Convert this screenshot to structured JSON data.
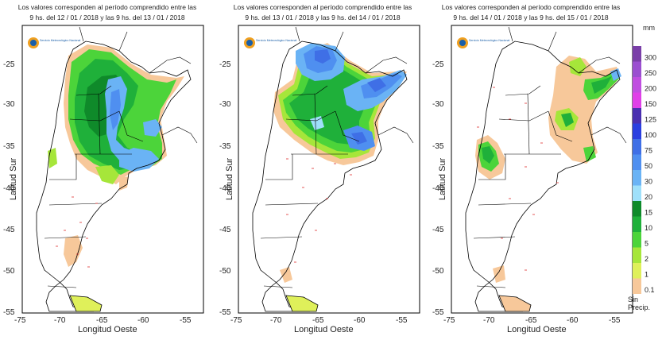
{
  "panels": [
    {
      "title_line1": "Los valores corresponden al período comprendido entre las",
      "title_line2": "9 hs. del 12 / 01 / 2018  y las 9 hs. del 13 / 01 / 2018",
      "ylabel": "Latitud Sur",
      "xlabel": "Longitud Oeste",
      "logo_text": "Servicio Meteorológico Nacional"
    },
    {
      "title_line1": "Los valores corresponden al período comprendido entre las",
      "title_line2": "9 hs. del 13 / 01 / 2018  y las 9 hs. del 14 / 01 / 2018",
      "ylabel": "Latitud Sur",
      "xlabel": "Longitud Oeste",
      "logo_text": "Servicio Meteorológico Nacional"
    },
    {
      "title_line1": "Los valores corresponden al período comprendido entre las",
      "title_line2": "9 hs. del 14 / 01 / 2018  y las 9 hs. del 15 / 01 / 2018",
      "ylabel": "Latitud Sur",
      "xlabel": "Longitud Oeste",
      "logo_text": "Servicio Meteorológico Nacional"
    }
  ],
  "x_ticks": [
    "-75",
    "-70",
    "-65",
    "-60",
    "-55"
  ],
  "y_ticks": [
    "-25",
    "-30",
    "-35",
    "-40",
    "-45",
    "-50",
    "-55"
  ],
  "legend": {
    "unit": "mm",
    "levels": [
      {
        "label": "300",
        "color": "#7a3fa8"
      },
      {
        "label": "250",
        "color": "#9b4fd0"
      },
      {
        "label": "200",
        "color": "#c04ee0"
      },
      {
        "label": "150",
        "color": "#e040e8"
      },
      {
        "label": "125",
        "color": "#4a2fb0"
      },
      {
        "label": "100",
        "color": "#2a3fe0"
      },
      {
        "label": "75",
        "color": "#3f6fe6"
      },
      {
        "label": "50",
        "color": "#4f8ff0"
      },
      {
        "label": "30",
        "color": "#6ab3f5"
      },
      {
        "label": "20",
        "color": "#9fe0fa"
      },
      {
        "label": "15",
        "color": "#0f8a2a"
      },
      {
        "label": "10",
        "color": "#1fb03a"
      },
      {
        "label": "5",
        "color": "#4cd43a"
      },
      {
        "label": "2",
        "color": "#a6e63a"
      },
      {
        "label": "1",
        "color": "#dff05a"
      },
      {
        "label": "0.1",
        "color": "#f7c89a"
      }
    ],
    "no_precip_line1": "Sin",
    "no_precip_line2": "Precip."
  }
}
